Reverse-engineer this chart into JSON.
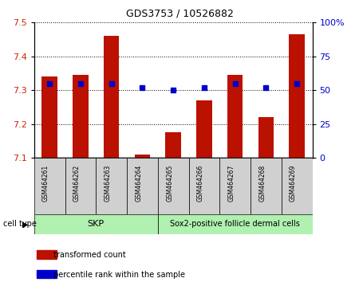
{
  "title": "GDS3753 / 10526882",
  "samples": [
    "GSM464261",
    "GSM464262",
    "GSM464263",
    "GSM464264",
    "GSM464265",
    "GSM464266",
    "GSM464267",
    "GSM464268",
    "GSM464269"
  ],
  "transformed_count": [
    7.34,
    7.345,
    7.46,
    7.11,
    7.175,
    7.27,
    7.345,
    7.22,
    7.465
  ],
  "percentile_rank": [
    55,
    55,
    55,
    52,
    50,
    52,
    55,
    52,
    55
  ],
  "ylim_left": [
    7.1,
    7.5
  ],
  "ylim_right": [
    0,
    100
  ],
  "yticks_left": [
    7.1,
    7.2,
    7.3,
    7.4,
    7.5
  ],
  "yticks_right": [
    0,
    25,
    50,
    75,
    100
  ],
  "ytick_labels_right": [
    "0",
    "25",
    "50",
    "75",
    "100%"
  ],
  "skp_count": 4,
  "sox2_count": 5,
  "skp_label": "SKP",
  "sox2_label": "Sox2-positive follicle dermal cells",
  "cell_type_label": "cell type",
  "cell_bg_color": "#b0f0b0",
  "bar_color": "#bb1100",
  "dot_color": "#0000cc",
  "bar_width": 0.5,
  "legend_items": [
    {
      "color": "#bb1100",
      "label": "transformed count"
    },
    {
      "color": "#0000cc",
      "label": "percentile rank within the sample"
    }
  ],
  "left_tick_color": "#cc2200",
  "right_tick_color": "#0000cc",
  "sample_box_color": "#d0d0d0",
  "title_fontsize": 9
}
